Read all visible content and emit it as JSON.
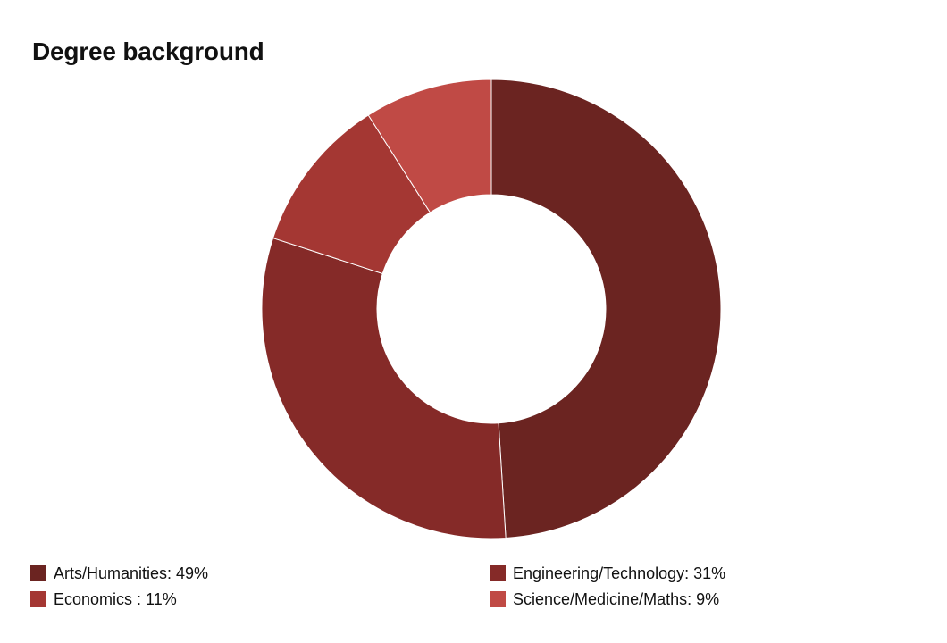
{
  "chart_data": {
    "type": "pie",
    "title": "Degree background",
    "donut": true,
    "slices": [
      {
        "label": "Arts/Humanities",
        "value": 49,
        "legend_text": "Arts/Humanities: 49%",
        "color": "#6b2421"
      },
      {
        "label": "Engineering/Technology",
        "value": 31,
        "legend_text": "Engineering/Technology: 31%",
        "color": "#852a28"
      },
      {
        "label": "Economics",
        "value": 11,
        "legend_text": "Economics : 11%",
        "color": "#a43733"
      },
      {
        "label": "Science/Medicine/Maths",
        "value": 9,
        "legend_text": "Science/Medicine/Maths: 9%",
        "color": "#c04a45"
      }
    ],
    "legend_position": "bottom"
  }
}
